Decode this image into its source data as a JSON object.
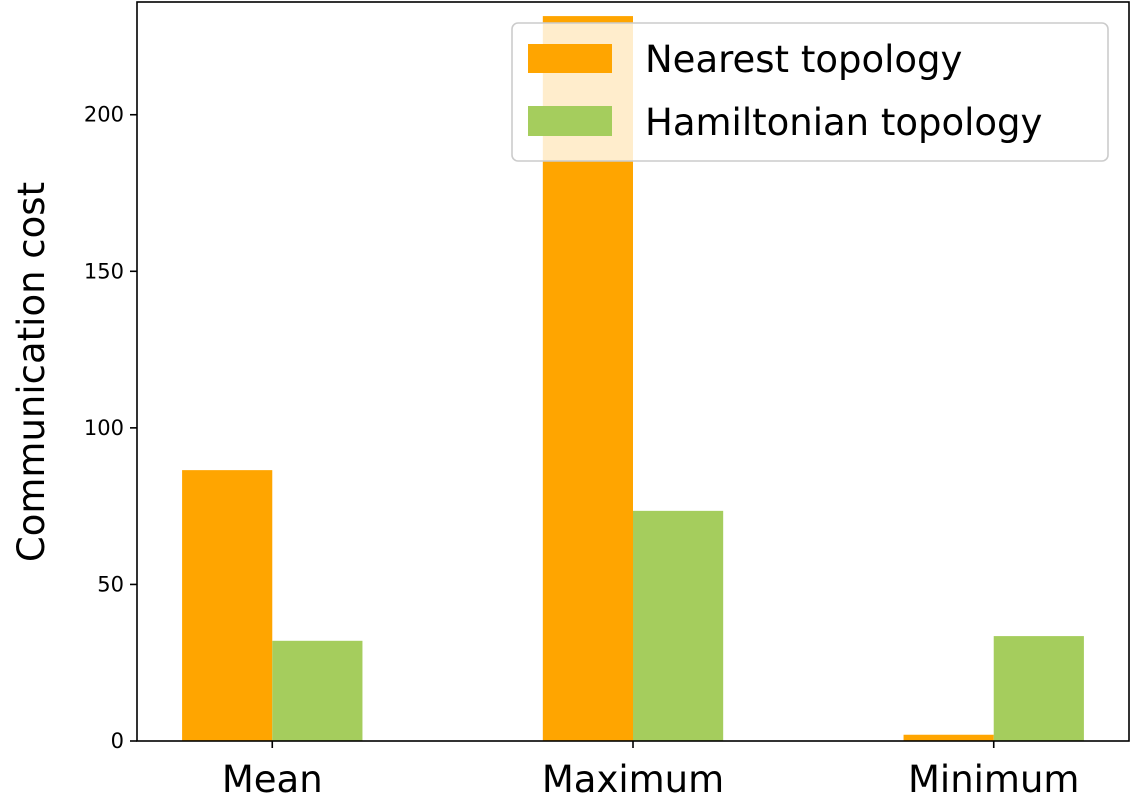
{
  "chart_data": {
    "type": "bar",
    "title": "",
    "xlabel": "",
    "ylabel": "Communication cost",
    "categories": [
      "Mean",
      "Maximum",
      "Minimum"
    ],
    "ylim": [
      0,
      236
    ],
    "yticks": [
      0,
      50,
      100,
      150,
      200
    ],
    "grid": false,
    "legend_position": "top-right",
    "series": [
      {
        "name": "Nearest topology",
        "color": "#FFA500",
        "values": [
          86.5,
          231.5,
          2
        ]
      },
      {
        "name": "Hamiltonian topology",
        "color": "#A5CD5D",
        "values": [
          32,
          73.5,
          33.5
        ]
      }
    ]
  }
}
